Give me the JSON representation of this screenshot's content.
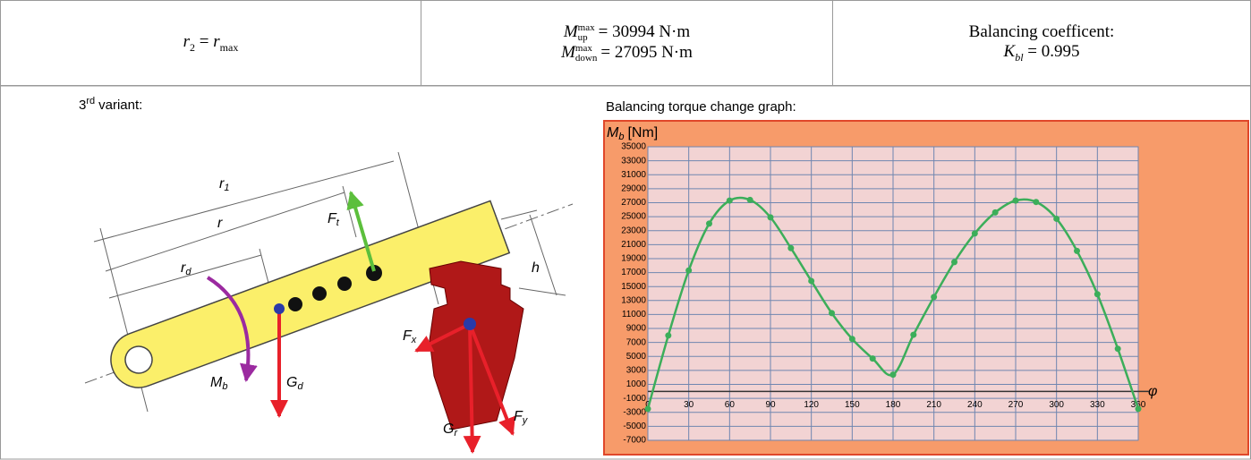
{
  "header": {
    "cell1": {
      "lhs": "r",
      "lhs_sub": "2",
      "eq": "=",
      "rhs": "r",
      "rhs_sub": "max"
    },
    "cell2": [
      {
        "symbol": "M",
        "sup": "max",
        "sub": "up",
        "eq": "=",
        "value": "30994 N·m"
      },
      {
        "symbol": "M",
        "sup": "max",
        "sub": "down",
        "eq": "=",
        "value": "27095 N·m"
      }
    ],
    "cell3": {
      "label": "Balancing coefficent:",
      "symbol": "K",
      "sub": "bl",
      "eq": "=",
      "value": "0.995"
    }
  },
  "diagram": {
    "title": {
      "text": "3",
      "sup": "rd",
      "rest": "variant:"
    },
    "labels": {
      "r1": {
        "main": "r",
        "sub": "1"
      },
      "r": {
        "main": "r"
      },
      "rd": {
        "main": "r",
        "sub": "d"
      },
      "Ft": {
        "main": "F",
        "sub": "t"
      },
      "h": {
        "main": "h"
      },
      "Fx": {
        "main": "F",
        "sub": "x"
      },
      "Mb": {
        "main": "M",
        "sub": "b"
      },
      "Gd": {
        "main": "G",
        "sub": "d"
      },
      "Gr": {
        "main": "G",
        "sub": "r"
      },
      "Fy": {
        "main": "F",
        "sub": "y"
      }
    }
  },
  "chart_data": {
    "type": "line",
    "title": "Balancing torque change graph:",
    "ylabel": {
      "main": "M",
      "sub": "b",
      "rest": "[Nm]"
    },
    "xlabel": "φ",
    "x": [
      0,
      15,
      30,
      45,
      60,
      75,
      90,
      105,
      120,
      135,
      150,
      165,
      180,
      195,
      210,
      225,
      240,
      255,
      270,
      285,
      300,
      315,
      330,
      345,
      360
    ],
    "series": [
      {
        "color": "#3cae5a",
        "values": [
          -2500,
          8000,
          17300,
          24000,
          27300,
          27400,
          24900,
          20500,
          15800,
          11200,
          7500,
          4700,
          2400,
          8100,
          13500,
          18500,
          22600,
          25600,
          27300,
          27100,
          24700,
          20100,
          13900,
          6100,
          -2500
        ]
      }
    ],
    "xlim": [
      0,
      360
    ],
    "xticks": [
      0,
      30,
      60,
      90,
      120,
      150,
      180,
      210,
      240,
      270,
      300,
      330,
      360
    ],
    "ylim": [
      -7000,
      35000
    ],
    "yticks": [
      -7000,
      -5000,
      -3000,
      -1000,
      1000,
      3000,
      5000,
      7000,
      9000,
      11000,
      13000,
      15000,
      17000,
      19000,
      21000,
      23000,
      25000,
      27000,
      29000,
      31000,
      33000,
      35000
    ],
    "grid": true
  }
}
